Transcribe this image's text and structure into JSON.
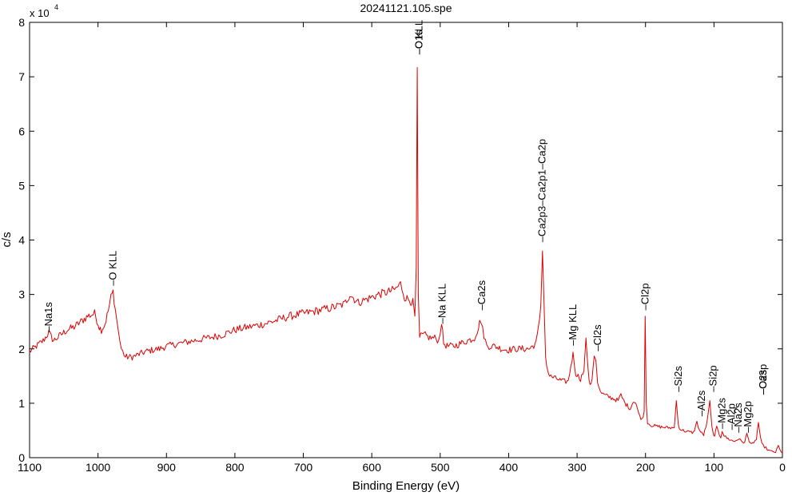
{
  "chart_data": {
    "type": "line",
    "title": "20241121.105.spe",
    "xlabel": "Binding Energy (eV)",
    "ylabel": "c/s",
    "y_multiplier_label": "x 10",
    "y_multiplier_exponent": "4",
    "xlim": [
      1100,
      0
    ],
    "ylim": [
      0,
      80000
    ],
    "x_reversed": true,
    "grid": false,
    "legend": "none",
    "series_color": "#dd0000",
    "x_ticks": [
      {
        "value": 1100,
        "label": "1100"
      },
      {
        "value": 1000,
        "label": "1000"
      },
      {
        "value": 900,
        "label": "900"
      },
      {
        "value": 800,
        "label": "800"
      },
      {
        "value": 700,
        "label": "700"
      },
      {
        "value": 600,
        "label": "600"
      },
      {
        "value": 500,
        "label": "500"
      },
      {
        "value": 400,
        "label": "400"
      },
      {
        "value": 300,
        "label": "300"
      },
      {
        "value": 200,
        "label": "200"
      },
      {
        "value": 100,
        "label": "100"
      },
      {
        "value": 0,
        "label": "0"
      }
    ],
    "y_ticks": [
      {
        "value": 0,
        "label": "0"
      },
      {
        "value": 10000,
        "label": "1"
      },
      {
        "value": 20000,
        "label": "2"
      },
      {
        "value": 30000,
        "label": "3"
      },
      {
        "value": 40000,
        "label": "4"
      },
      {
        "value": 50000,
        "label": "5"
      },
      {
        "value": 60000,
        "label": "6"
      },
      {
        "value": 70000,
        "label": "7"
      },
      {
        "value": 80000,
        "label": "8"
      }
    ],
    "series": [
      {
        "x": [
          1100,
          1090,
          1080,
          1072,
          1065,
          1055,
          1045,
          1035,
          1025,
          1015,
          1005,
          998,
          995,
          990,
          985,
          981,
          978,
          975,
          970,
          966,
          960,
          950,
          940,
          930,
          920,
          910,
          900,
          880,
          860,
          840,
          820,
          800,
          780,
          760,
          740,
          720,
          700,
          680,
          660,
          640,
          632,
          620,
          600,
          590,
          575,
          565,
          558,
          552,
          545,
          540,
          537,
          535,
          533.5,
          532,
          530,
          527,
          522,
          515,
          508,
          502,
          498,
          495,
          490,
          480,
          470,
          460,
          450,
          444,
          441,
          438,
          432,
          420,
          410,
          400,
          390,
          380,
          370,
          360,
          356,
          353,
          350.5,
          348,
          346,
          343,
          340,
          330,
          320,
          313,
          309,
          306,
          302,
          295,
          290,
          287,
          284,
          281,
          278,
          275,
          272.5,
          270,
          266,
          260,
          250,
          240,
          236,
          230,
          222,
          218,
          214,
          210,
          205,
          202,
          200.5,
          199,
          197,
          193,
          185,
          175,
          165,
          158,
          155,
          152,
          149,
          145,
          140,
          130,
          125,
          121,
          118,
          115,
          110,
          106,
          103,
          100.5,
          99,
          96,
          92,
          90,
          88,
          85,
          81,
          78,
          75,
          70,
          64,
          60,
          55,
          52,
          50,
          47,
          45,
          42,
          38,
          35,
          32,
          30,
          28,
          26,
          24,
          22,
          18,
          14,
          10,
          8,
          6,
          4,
          2,
          0
        ],
        "y": [
          19500,
          20500,
          21500,
          23000,
          21500,
          22500,
          23500,
          24000,
          25000,
          26000,
          26500,
          24000,
          23500,
          24500,
          27000,
          29500,
          30500,
          27500,
          23000,
          20000,
          18500,
          18500,
          19000,
          19500,
          19800,
          20000,
          20500,
          21000,
          21500,
          22000,
          22500,
          23500,
          24000,
          24500,
          25200,
          26000,
          26500,
          27000,
          27500,
          28200,
          30000,
          28500,
          29500,
          30000,
          30500,
          31000,
          32000,
          29500,
          29000,
          28500,
          26000,
          35000,
          71700,
          30000,
          22000,
          22500,
          22500,
          22000,
          22000,
          21500,
          25000,
          21000,
          20500,
          20500,
          21000,
          21500,
          22000,
          24000,
          25500,
          23500,
          20500,
          20500,
          20000,
          19800,
          20000,
          20000,
          20000,
          21000,
          24000,
          28000,
          38000,
          27000,
          18500,
          16000,
          15000,
          14500,
          14000,
          14000,
          17000,
          19000,
          15500,
          14500,
          16000,
          22000,
          16000,
          13000,
          14500,
          19000,
          18000,
          14000,
          12000,
          11500,
          11000,
          10500,
          11500,
          10000,
          9000,
          10500,
          10000,
          8000,
          7000,
          8500,
          26000,
          10000,
          6500,
          6000,
          5800,
          5600,
          5500,
          5500,
          10500,
          6000,
          5200,
          5000,
          4800,
          4600,
          6500,
          5000,
          4500,
          4200,
          6500,
          10500,
          5500,
          4000,
          4200,
          5500,
          4200,
          3800,
          5000,
          4000,
          3600,
          3400,
          3200,
          3000,
          3500,
          3000,
          2800,
          4500,
          3500,
          2800,
          2600,
          2500,
          3500,
          6500,
          3500,
          2500,
          2200,
          2000,
          1800,
          1500,
          1200,
          1100,
          1000,
          1500,
          2200,
          1500,
          1000,
          800
        ]
      }
    ],
    "annotations": [
      {
        "label": "Na1s",
        "x": 1072,
        "y": 22500
      },
      {
        "label": "O KLL",
        "x": 978,
        "y": 31000
      },
      {
        "label": "O1s",
        "x": 531,
        "y": 73500
      },
      {
        "label": "C KLL",
        "x": 531,
        "y": 73500
      },
      {
        "label": "Na KLL",
        "x": 497,
        "y": 24000
      },
      {
        "label": "Ca2s",
        "x": 439,
        "y": 26500
      },
      {
        "label": "Ca2p3",
        "x": 351,
        "y": 39000
      },
      {
        "label": "Ca2p1",
        "x": 351,
        "y": 39000
      },
      {
        "label": "Ca2p",
        "x": 351,
        "y": 39000
      },
      {
        "label": "Mg KLL",
        "x": 306,
        "y": 20000
      },
      {
        "label": "Cl2s",
        "x": 270,
        "y": 19000
      },
      {
        "label": "Cl2p",
        "x": 200,
        "y": 26500
      },
      {
        "label": "Si2s",
        "x": 152,
        "y": 11500
      },
      {
        "label": "Al2s",
        "x": 118,
        "y": 7000
      },
      {
        "label": "Si2p",
        "x": 101,
        "y": 11500
      },
      {
        "label": "Mg2s",
        "x": 88,
        "y": 4700
      },
      {
        "label": "Al2p",
        "x": 74,
        "y": 4500
      },
      {
        "label": "Na2s",
        "x": 64,
        "y": 4000
      },
      {
        "label": "Mg2p",
        "x": 50,
        "y": 4000
      },
      {
        "label": "O2s",
        "x": 28,
        "y": 11000
      },
      {
        "label": "Ca3p",
        "x": 28,
        "y": 11000
      }
    ]
  }
}
